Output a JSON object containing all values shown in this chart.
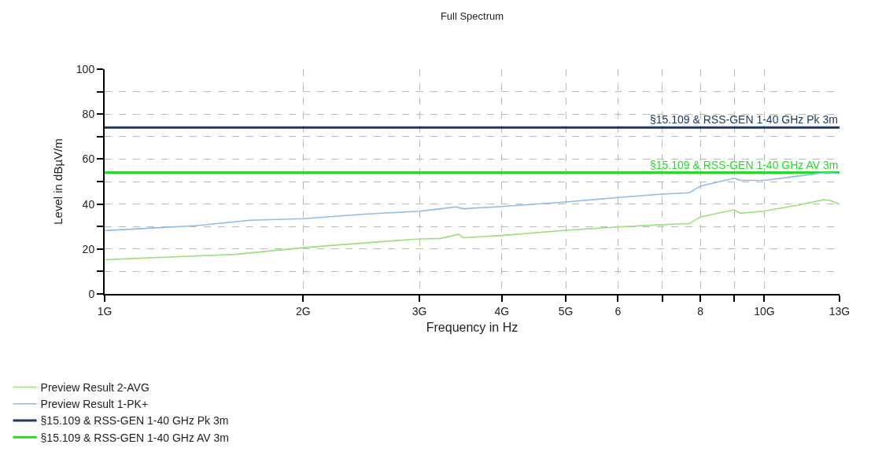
{
  "chart_data": {
    "type": "line",
    "title": "Full Spectrum",
    "xlabel": "Frequency in Hz",
    "ylabel": "Level in dBµV/m",
    "log": "x",
    "grid": true,
    "legend": "bottom",
    "line_style": "solid",
    "marker": "none",
    "xlim": [
      1,
      13
    ],
    "xticks": [
      {
        "value": 1,
        "label": "1G"
      },
      {
        "value": 2,
        "label": "2G"
      },
      {
        "value": 3,
        "label": "3G"
      },
      {
        "value": 4,
        "label": "4G"
      },
      {
        "value": 5,
        "label": "5G"
      },
      6,
      {
        "value": 7,
        "label": null
      },
      8,
      {
        "value": 9,
        "label": null
      },
      {
        "value": 10,
        "label": "10G"
      },
      {
        "value": 13,
        "label": "13G"
      }
    ],
    "ylim": [
      0,
      100
    ],
    "yticks": [
      0,
      {
        "value": 10,
        "label": null
      },
      20,
      {
        "value": 30,
        "label": null
      },
      40,
      {
        "value": 50,
        "label": null
      },
      60,
      {
        "value": 70,
        "label": null
      },
      80,
      {
        "value": 90,
        "label": null
      },
      100
    ],
    "series": [
      {
        "name": "Preview Result 2-AVG",
        "color": "#98e07c",
        "x": [
          1,
          1.09,
          1.32,
          1.58,
          2,
          2.28,
          3,
          3.23,
          3.44,
          3.5,
          4,
          5,
          6,
          7,
          7.7,
          8,
          9,
          9.2,
          10,
          11.2,
          12.3,
          12.6,
          13
        ],
        "values": [
          15.2,
          15.7,
          16.7,
          17.6,
          20.6,
          21.9,
          24.5,
          24.7,
          26.5,
          25,
          26,
          28.3,
          29.8,
          30.8,
          31.3,
          34.3,
          37.4,
          35.9,
          36.9,
          39.4,
          41.9,
          41.5,
          39.9
        ]
      },
      {
        "name": "Preview Result 1-PK+",
        "color": "#8cbcec",
        "x": [
          1,
          1.2,
          1.38,
          1.66,
          2,
          2.5,
          3,
          3.23,
          3.41,
          3.5,
          4,
          5,
          6,
          7,
          7.7,
          8,
          9,
          9.2,
          10,
          11.3,
          12.4,
          13
        ],
        "values": [
          28.2,
          29.4,
          30.4,
          32.8,
          33.5,
          35.6,
          36.8,
          37.9,
          38.7,
          37.9,
          38.9,
          40.9,
          42.9,
          44.4,
          45,
          48,
          51.5,
          50.5,
          50.5,
          52.5,
          54,
          53.5
        ]
      }
    ],
    "ref_lines": [
      {
        "axis": "y",
        "value": 74,
        "label": "§15.109 & RSS-GEN 1-40 GHz Pk 3m",
        "color": "#1b3b60"
      },
      {
        "axis": "y",
        "value": 54,
        "label": "§15.109 & RSS-GEN 1-40 GHz AV 3m",
        "color": "#22dd22"
      }
    ]
  }
}
